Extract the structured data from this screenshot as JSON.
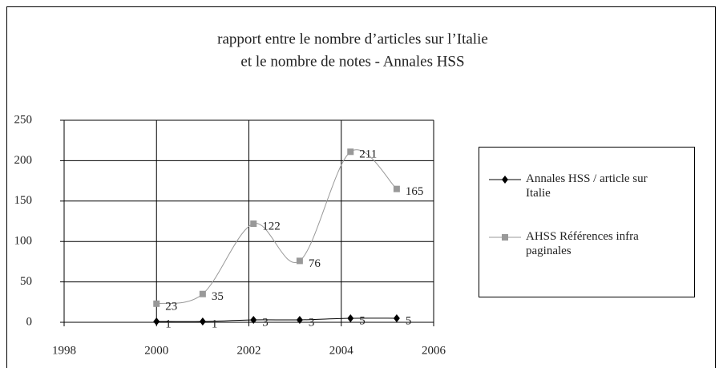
{
  "chart_data": {
    "type": "line",
    "title": [
      "rapport entre le nombre d’articles sur l’Italie",
      "et le nombre de notes - Annales HSS"
    ],
    "x": [
      2000,
      2001,
      2002.1,
      2003.1,
      2004.2,
      2005.2
    ],
    "series": [
      {
        "name": "Annales HSS / article sur Italie",
        "color": "#000000",
        "marker": "diamond",
        "values": [
          1,
          1,
          3,
          3,
          5,
          5
        ]
      },
      {
        "name": "AHSS Références infra paginales",
        "color": "#999999",
        "marker": "square",
        "values": [
          23,
          35,
          122,
          76,
          211,
          165
        ]
      }
    ],
    "xlim": [
      1998,
      2006
    ],
    "xticks": [
      1998,
      2000,
      2002,
      2004,
      2006
    ],
    "ylim": [
      0,
      250
    ],
    "yticks": [
      0,
      50,
      100,
      150,
      200,
      250
    ],
    "grid": true,
    "smooth": true,
    "legend": "right"
  }
}
